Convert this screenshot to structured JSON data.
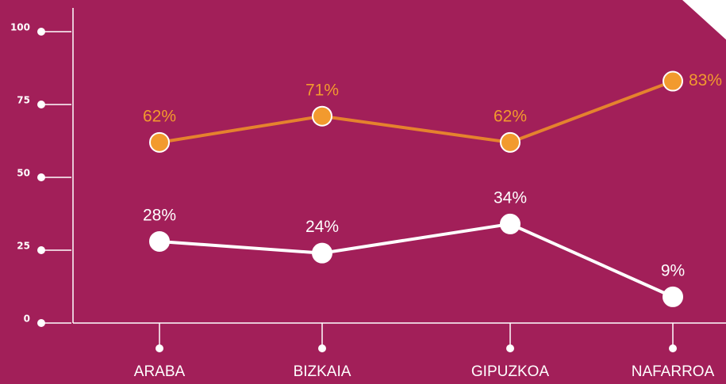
{
  "chart_data": {
    "type": "line",
    "categories": [
      "ARABA",
      "BIZKAIA",
      "GIPUZKOA",
      "NAFARROA"
    ],
    "series": [
      {
        "color": "#f29a2e",
        "values": [
          62,
          71,
          62,
          83
        ],
        "value_labels": [
          "62%",
          "71%",
          "62%",
          "83%"
        ]
      },
      {
        "color": "#ffffff",
        "values": [
          28,
          24,
          34,
          9
        ],
        "value_labels": [
          "28%",
          "24%",
          "34%",
          "9%"
        ]
      }
    ],
    "ylim": [
      0,
      100
    ],
    "yticks": [
      0,
      25,
      50,
      75,
      100
    ]
  }
}
